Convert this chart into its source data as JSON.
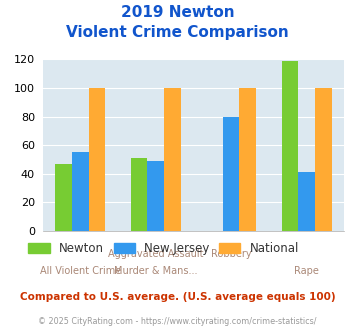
{
  "title_line1": "2019 Newton",
  "title_line2": "Violent Crime Comparison",
  "categories_top": [
    "",
    "Aggravated Assault",
    "Robbery",
    ""
  ],
  "categories_bot": [
    "All Violent Crime",
    "Murder & Mans...",
    "",
    "Rape"
  ],
  "newton": [
    47,
    51,
    0,
    119
  ],
  "new_jersey": [
    55,
    49,
    80,
    41
  ],
  "national": [
    100,
    100,
    100,
    100
  ],
  "newton_color": "#77cc33",
  "nj_color": "#3399ee",
  "national_color": "#ffaa33",
  "bg_color": "#dce8f0",
  "ylim": [
    0,
    120
  ],
  "yticks": [
    0,
    20,
    40,
    60,
    80,
    100,
    120
  ],
  "title_color": "#1155cc",
  "xlabel_color": "#aa8877",
  "legend_label_color": "#333333",
  "footer_text": "Compared to U.S. average. (U.S. average equals 100)",
  "copyright_text": "© 2025 CityRating.com - https://www.cityrating.com/crime-statistics/",
  "footer_color": "#cc3300",
  "copyright_color": "#999999"
}
